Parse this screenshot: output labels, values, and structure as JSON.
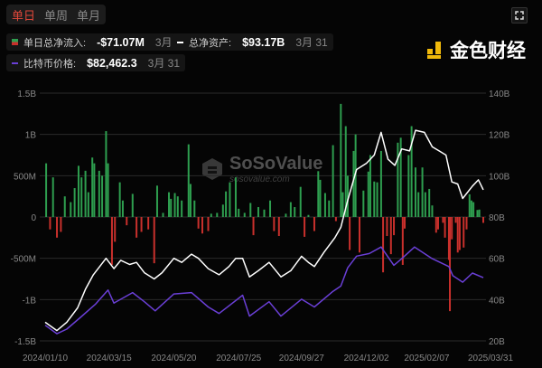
{
  "tabs": [
    {
      "label": "单日",
      "active": true
    },
    {
      "label": "单周",
      "active": false
    },
    {
      "label": "单月",
      "active": false
    }
  ],
  "fullscreen_icon": "fullscreen-icon",
  "legend": {
    "flow": {
      "label": "单日总净流入:",
      "value": "-$71.07M",
      "date": "3月 31"
    },
    "assets": {
      "label": "总净资产:",
      "value": "$93.17B",
      "date": "3月 31"
    },
    "price": {
      "label": "比特币价格:",
      "value": "$82,462.3",
      "date": "3月 31"
    }
  },
  "watermark": {
    "brand": "SoSoValue",
    "url": "sosovalue.com"
  },
  "logo": {
    "text": "金色财经"
  },
  "colors": {
    "inflow": "#2e9e4f",
    "outflow": "#c9302c",
    "assets": "#ffffff",
    "price": "#6a3fd6",
    "grid": "#2a2a2a"
  },
  "chart_data": {
    "type": "bar+line",
    "left_axis": {
      "ticks": [
        "1.5B",
        "1B",
        "500M",
        "0",
        "-500M",
        "-1B",
        "-1.5B"
      ],
      "range": [
        -1500,
        1500
      ],
      "unit": "M USD"
    },
    "right_axis": {
      "ticks": [
        "140B",
        "120B",
        "100B",
        "80B",
        "60B",
        "40B",
        "20B"
      ],
      "range": [
        20,
        140
      ],
      "unit": "B USD"
    },
    "x_ticks": [
      "2024/01/10",
      "2024/03/15",
      "2024/05/20",
      "2024/07/25",
      "2024/09/27",
      "2024/12/02",
      "2025/02/07",
      "2025/03/31"
    ],
    "x_range": [
      "2024-01-10",
      "2025-03-31"
    ],
    "grid": true,
    "flows": [
      [
        "2024-01-11",
        650
      ],
      [
        "2024-01-15",
        -150
      ],
      [
        "2024-01-18",
        480
      ],
      [
        "2024-01-22",
        -250
      ],
      [
        "2024-01-26",
        -180
      ],
      [
        "2024-01-30",
        250
      ],
      [
        "2024-02-05",
        180
      ],
      [
        "2024-02-09",
        350
      ],
      [
        "2024-02-13",
        620
      ],
      [
        "2024-02-16",
        480
      ],
      [
        "2024-02-20",
        560
      ],
      [
        "2024-02-23",
        300
      ],
      [
        "2024-02-27",
        720
      ],
      [
        "2024-02-29",
        650
      ],
      [
        "2024-03-05",
        560
      ],
      [
        "2024-03-08",
        500
      ],
      [
        "2024-03-12",
        1040
      ],
      [
        "2024-03-14",
        650
      ],
      [
        "2024-03-18",
        -580
      ],
      [
        "2024-03-21",
        -300
      ],
      [
        "2024-03-26",
        420
      ],
      [
        "2024-03-29",
        200
      ],
      [
        "2024-04-02",
        -100
      ],
      [
        "2024-04-08",
        280
      ],
      [
        "2024-04-12",
        -250
      ],
      [
        "2024-04-17",
        -180
      ],
      [
        "2024-04-24",
        -150
      ],
      [
        "2024-04-30",
        -560
      ],
      [
        "2024-05-03",
        380
      ],
      [
        "2024-05-09",
        50
      ],
      [
        "2024-05-15",
        300
      ],
      [
        "2024-05-17",
        220
      ],
      [
        "2024-05-21",
        290
      ],
      [
        "2024-05-24",
        250
      ],
      [
        "2024-05-28",
        200
      ],
      [
        "2024-06-04",
        880
      ],
      [
        "2024-06-06",
        400
      ],
      [
        "2024-06-10",
        200
      ],
      [
        "2024-06-14",
        -140
      ],
      [
        "2024-06-18",
        -200
      ],
      [
        "2024-06-24",
        -170
      ],
      [
        "2024-06-27",
        40
      ],
      [
        "2024-07-03",
        50
      ],
      [
        "2024-07-09",
        150
      ],
      [
        "2024-07-12",
        310
      ],
      [
        "2024-07-16",
        420
      ],
      [
        "2024-07-22",
        480
      ],
      [
        "2024-07-25",
        100
      ],
      [
        "2024-07-31",
        50
      ],
      [
        "2024-08-06",
        170
      ],
      [
        "2024-08-09",
        -220
      ],
      [
        "2024-08-14",
        120
      ],
      [
        "2024-08-20",
        90
      ],
      [
        "2024-08-26",
        200
      ],
      [
        "2024-08-30",
        -170
      ],
      [
        "2024-09-04",
        -230
      ],
      [
        "2024-09-11",
        40
      ],
      [
        "2024-09-16",
        180
      ],
      [
        "2024-09-20",
        120
      ],
      [
        "2024-09-26",
        365
      ],
      [
        "2024-09-30",
        -240
      ],
      [
        "2024-10-04",
        25
      ],
      [
        "2024-10-10",
        -170
      ],
      [
        "2024-10-14",
        555
      ],
      [
        "2024-10-16",
        450
      ],
      [
        "2024-10-21",
        290
      ],
      [
        "2024-10-25",
        200
      ],
      [
        "2024-10-29",
        870
      ],
      [
        "2024-11-01",
        -50
      ],
      [
        "2024-11-06",
        1370
      ],
      [
        "2024-11-08",
        300
      ],
      [
        "2024-11-11",
        1100
      ],
      [
        "2024-11-13",
        500
      ],
      [
        "2024-11-15",
        -400
      ],
      [
        "2024-11-19",
        800
      ],
      [
        "2024-11-21",
        1000
      ],
      [
        "2024-11-25",
        -430
      ],
      [
        "2024-11-29",
        320
      ],
      [
        "2024-12-04",
        550
      ],
      [
        "2024-12-06",
        750
      ],
      [
        "2024-12-10",
        430
      ],
      [
        "2024-12-13",
        420
      ],
      [
        "2024-12-17",
        800
      ],
      [
        "2024-12-19",
        -670
      ],
      [
        "2024-12-23",
        -230
      ],
      [
        "2024-12-27",
        -450
      ],
      [
        "2024-12-30",
        -220
      ],
      [
        "2025-01-03",
        900
      ],
      [
        "2025-01-06",
        960
      ],
      [
        "2025-01-08",
        -580
      ],
      [
        "2025-01-10",
        -140
      ],
      [
        "2025-01-14",
        750
      ],
      [
        "2025-01-17",
        1100
      ],
      [
        "2025-01-21",
        600
      ],
      [
        "2025-01-24",
        300
      ],
      [
        "2025-01-28",
        600
      ],
      [
        "2025-01-31",
        300
      ],
      [
        "2025-02-04",
        340
      ],
      [
        "2025-02-07",
        140
      ],
      [
        "2025-02-11",
        -190
      ],
      [
        "2025-02-13",
        -150
      ],
      [
        "2025-02-18",
        -70
      ],
      [
        "2025-02-20",
        -250
      ],
      [
        "2025-02-24",
        -520
      ],
      [
        "2025-02-25",
        -1140
      ],
      [
        "2025-02-27",
        -270
      ],
      [
        "2025-03-03",
        -70
      ],
      [
        "2025-03-05",
        -430
      ],
      [
        "2025-03-07",
        -400
      ],
      [
        "2025-03-11",
        -370
      ],
      [
        "2025-03-14",
        -150
      ],
      [
        "2025-03-17",
        275
      ],
      [
        "2025-03-19",
        200
      ],
      [
        "2025-03-21",
        180
      ],
      [
        "2025-03-25",
        85
      ],
      [
        "2025-03-27",
        90
      ],
      [
        "2025-03-31",
        -71.07
      ]
    ],
    "assets": [
      [
        "2024-01-10",
        29
      ],
      [
        "2024-01-22",
        25
      ],
      [
        "2024-02-01",
        29
      ],
      [
        "2024-02-12",
        36
      ],
      [
        "2024-02-20",
        45
      ],
      [
        "2024-02-28",
        52
      ],
      [
        "2024-03-12",
        60
      ],
      [
        "2024-03-20",
        55
      ],
      [
        "2024-03-27",
        59
      ],
      [
        "2024-04-05",
        57
      ],
      [
        "2024-04-12",
        58
      ],
      [
        "2024-04-20",
        53
      ],
      [
        "2024-04-30",
        50
      ],
      [
        "2024-05-08",
        53
      ],
      [
        "2024-05-20",
        60
      ],
      [
        "2024-05-28",
        58
      ],
      [
        "2024-06-07",
        62
      ],
      [
        "2024-06-14",
        60
      ],
      [
        "2024-06-24",
        55
      ],
      [
        "2024-07-05",
        52
      ],
      [
        "2024-07-15",
        56
      ],
      [
        "2024-07-22",
        60
      ],
      [
        "2024-07-29",
        60
      ],
      [
        "2024-08-05",
        51
      ],
      [
        "2024-08-14",
        54
      ],
      [
        "2024-08-25",
        58
      ],
      [
        "2024-09-06",
        51
      ],
      [
        "2024-09-16",
        54
      ],
      [
        "2024-09-27",
        61
      ],
      [
        "2024-10-04",
        58
      ],
      [
        "2024-10-10",
        56
      ],
      [
        "2024-10-20",
        63
      ],
      [
        "2024-10-31",
        70
      ],
      [
        "2024-11-06",
        75
      ],
      [
        "2024-11-13",
        88
      ],
      [
        "2024-11-22",
        103
      ],
      [
        "2024-12-02",
        106
      ],
      [
        "2024-12-10",
        110
      ],
      [
        "2024-12-17",
        121
      ],
      [
        "2024-12-24",
        108
      ],
      [
        "2024-12-31",
        105
      ],
      [
        "2025-01-07",
        113
      ],
      [
        "2025-01-15",
        112
      ],
      [
        "2025-01-21",
        122
      ],
      [
        "2025-01-30",
        121
      ],
      [
        "2025-02-07",
        114
      ],
      [
        "2025-02-14",
        112
      ],
      [
        "2025-02-21",
        110
      ],
      [
        "2025-02-27",
        97
      ],
      [
        "2025-03-05",
        96
      ],
      [
        "2025-03-10",
        89
      ],
      [
        "2025-03-20",
        95
      ],
      [
        "2025-03-26",
        98
      ],
      [
        "2025-03-31",
        93.17
      ]
    ],
    "price": [
      [
        "2024-01-10",
        46000
      ],
      [
        "2024-01-22",
        39500
      ],
      [
        "2024-02-01",
        43000
      ],
      [
        "2024-02-15",
        52000
      ],
      [
        "2024-03-01",
        62000
      ],
      [
        "2024-03-14",
        73000
      ],
      [
        "2024-03-20",
        63000
      ],
      [
        "2024-04-08",
        71000
      ],
      [
        "2024-04-20",
        64000
      ],
      [
        "2024-05-01",
        57000
      ],
      [
        "2024-05-20",
        70000
      ],
      [
        "2024-06-07",
        71000
      ],
      [
        "2024-06-24",
        60000
      ],
      [
        "2024-07-05",
        55000
      ],
      [
        "2024-07-29",
        69000
      ],
      [
        "2024-08-05",
        53000
      ],
      [
        "2024-08-25",
        64000
      ],
      [
        "2024-09-06",
        53000
      ],
      [
        "2024-09-27",
        66000
      ],
      [
        "2024-10-10",
        60000
      ],
      [
        "2024-10-29",
        72000
      ],
      [
        "2024-11-06",
        76000
      ],
      [
        "2024-11-13",
        90000
      ],
      [
        "2024-11-22",
        99000
      ],
      [
        "2024-12-05",
        101000
      ],
      [
        "2024-12-17",
        106000
      ],
      [
        "2024-12-30",
        92000
      ],
      [
        "2025-01-07",
        97000
      ],
      [
        "2025-01-20",
        106000
      ],
      [
        "2025-02-07",
        97000
      ],
      [
        "2025-02-24",
        91000
      ],
      [
        "2025-02-28",
        84000
      ],
      [
        "2025-03-10",
        79000
      ],
      [
        "2025-03-20",
        86000
      ],
      [
        "2025-03-31",
        82462.3
      ]
    ]
  }
}
